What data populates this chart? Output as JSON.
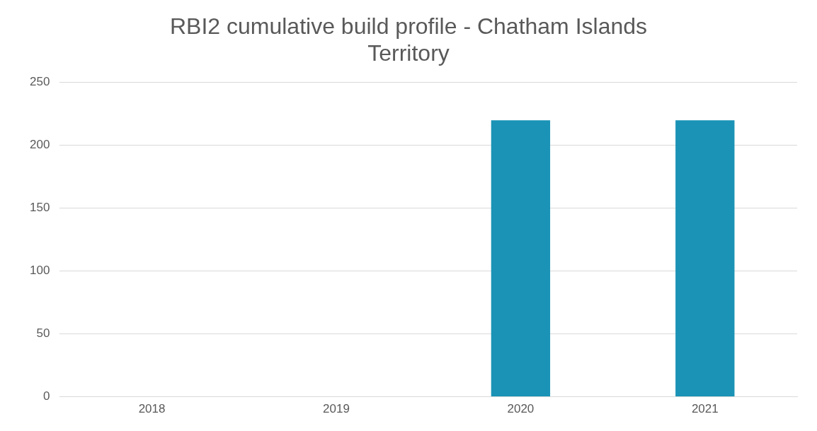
{
  "chart_data": {
    "type": "bar",
    "title": "RBI2 cumulative build profile - Chatham Islands Territory",
    "categories": [
      "2018",
      "2019",
      "2020",
      "2021"
    ],
    "values": [
      0,
      0,
      220,
      220
    ],
    "color": "#1a93b6",
    "ylim": [
      0,
      250
    ],
    "yticks": [
      0,
      50,
      100,
      150,
      200,
      250
    ],
    "grid": "y",
    "legend": false
  }
}
